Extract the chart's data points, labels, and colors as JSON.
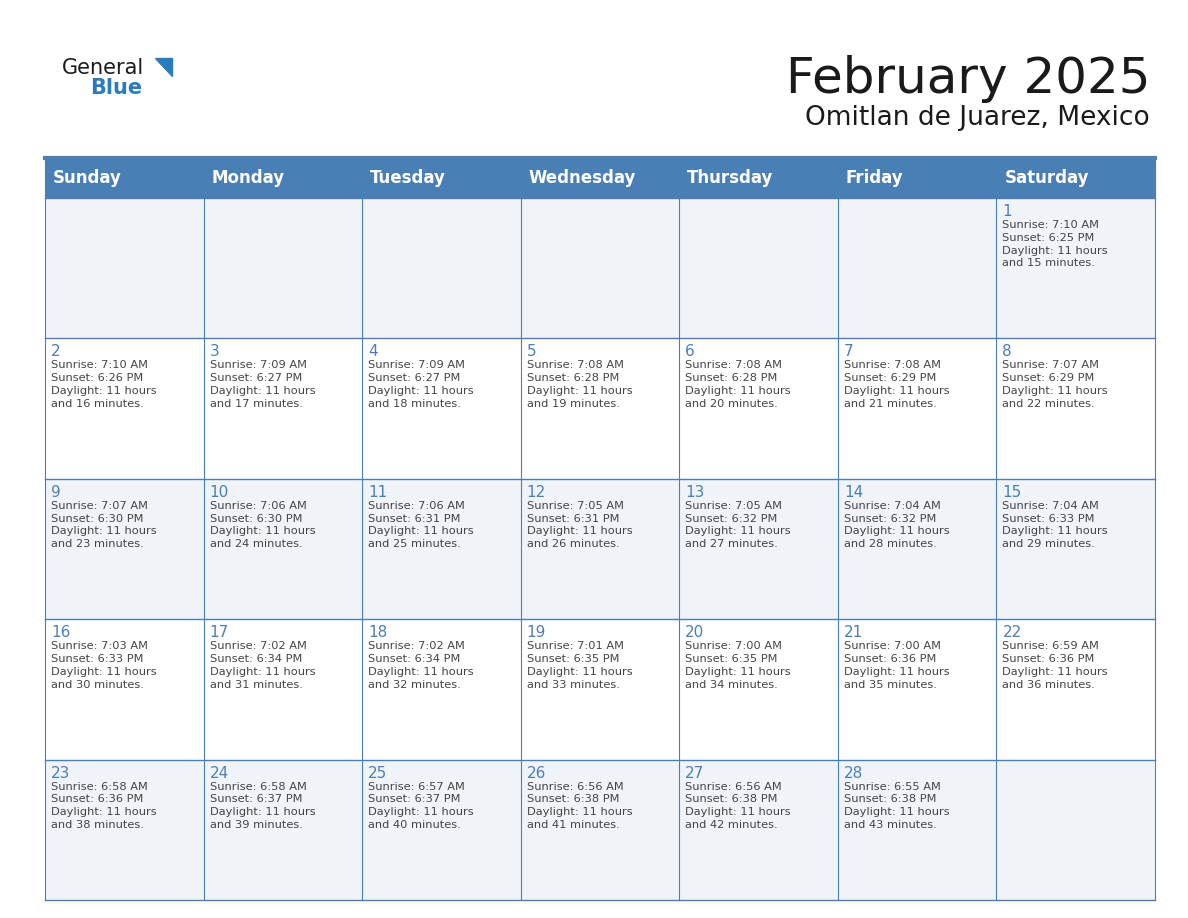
{
  "title": "February 2025",
  "subtitle": "Omitlan de Juarez, Mexico",
  "header_bg": "#4a7fb5",
  "header_text_color": "#ffffff",
  "cell_bg_light": "#f0f4f8",
  "cell_bg_white": "#ffffff",
  "day_number_color": "#4a7fb5",
  "info_text_color": "#444444",
  "border_color": "#4a7fb5",
  "sep_line_color": "#4a7fb5",
  "days_of_week": [
    "Sunday",
    "Monday",
    "Tuesday",
    "Wednesday",
    "Thursday",
    "Friday",
    "Saturday"
  ],
  "weeks": [
    [
      {
        "day": "",
        "info": ""
      },
      {
        "day": "",
        "info": ""
      },
      {
        "day": "",
        "info": ""
      },
      {
        "day": "",
        "info": ""
      },
      {
        "day": "",
        "info": ""
      },
      {
        "day": "",
        "info": ""
      },
      {
        "day": "1",
        "info": "Sunrise: 7:10 AM\nSunset: 6:25 PM\nDaylight: 11 hours\nand 15 minutes."
      }
    ],
    [
      {
        "day": "2",
        "info": "Sunrise: 7:10 AM\nSunset: 6:26 PM\nDaylight: 11 hours\nand 16 minutes."
      },
      {
        "day": "3",
        "info": "Sunrise: 7:09 AM\nSunset: 6:27 PM\nDaylight: 11 hours\nand 17 minutes."
      },
      {
        "day": "4",
        "info": "Sunrise: 7:09 AM\nSunset: 6:27 PM\nDaylight: 11 hours\nand 18 minutes."
      },
      {
        "day": "5",
        "info": "Sunrise: 7:08 AM\nSunset: 6:28 PM\nDaylight: 11 hours\nand 19 minutes."
      },
      {
        "day": "6",
        "info": "Sunrise: 7:08 AM\nSunset: 6:28 PM\nDaylight: 11 hours\nand 20 minutes."
      },
      {
        "day": "7",
        "info": "Sunrise: 7:08 AM\nSunset: 6:29 PM\nDaylight: 11 hours\nand 21 minutes."
      },
      {
        "day": "8",
        "info": "Sunrise: 7:07 AM\nSunset: 6:29 PM\nDaylight: 11 hours\nand 22 minutes."
      }
    ],
    [
      {
        "day": "9",
        "info": "Sunrise: 7:07 AM\nSunset: 6:30 PM\nDaylight: 11 hours\nand 23 minutes."
      },
      {
        "day": "10",
        "info": "Sunrise: 7:06 AM\nSunset: 6:30 PM\nDaylight: 11 hours\nand 24 minutes."
      },
      {
        "day": "11",
        "info": "Sunrise: 7:06 AM\nSunset: 6:31 PM\nDaylight: 11 hours\nand 25 minutes."
      },
      {
        "day": "12",
        "info": "Sunrise: 7:05 AM\nSunset: 6:31 PM\nDaylight: 11 hours\nand 26 minutes."
      },
      {
        "day": "13",
        "info": "Sunrise: 7:05 AM\nSunset: 6:32 PM\nDaylight: 11 hours\nand 27 minutes."
      },
      {
        "day": "14",
        "info": "Sunrise: 7:04 AM\nSunset: 6:32 PM\nDaylight: 11 hours\nand 28 minutes."
      },
      {
        "day": "15",
        "info": "Sunrise: 7:04 AM\nSunset: 6:33 PM\nDaylight: 11 hours\nand 29 minutes."
      }
    ],
    [
      {
        "day": "16",
        "info": "Sunrise: 7:03 AM\nSunset: 6:33 PM\nDaylight: 11 hours\nand 30 minutes."
      },
      {
        "day": "17",
        "info": "Sunrise: 7:02 AM\nSunset: 6:34 PM\nDaylight: 11 hours\nand 31 minutes."
      },
      {
        "day": "18",
        "info": "Sunrise: 7:02 AM\nSunset: 6:34 PM\nDaylight: 11 hours\nand 32 minutes."
      },
      {
        "day": "19",
        "info": "Sunrise: 7:01 AM\nSunset: 6:35 PM\nDaylight: 11 hours\nand 33 minutes."
      },
      {
        "day": "20",
        "info": "Sunrise: 7:00 AM\nSunset: 6:35 PM\nDaylight: 11 hours\nand 34 minutes."
      },
      {
        "day": "21",
        "info": "Sunrise: 7:00 AM\nSunset: 6:36 PM\nDaylight: 11 hours\nand 35 minutes."
      },
      {
        "day": "22",
        "info": "Sunrise: 6:59 AM\nSunset: 6:36 PM\nDaylight: 11 hours\nand 36 minutes."
      }
    ],
    [
      {
        "day": "23",
        "info": "Sunrise: 6:58 AM\nSunset: 6:36 PM\nDaylight: 11 hours\nand 38 minutes."
      },
      {
        "day": "24",
        "info": "Sunrise: 6:58 AM\nSunset: 6:37 PM\nDaylight: 11 hours\nand 39 minutes."
      },
      {
        "day": "25",
        "info": "Sunrise: 6:57 AM\nSunset: 6:37 PM\nDaylight: 11 hours\nand 40 minutes."
      },
      {
        "day": "26",
        "info": "Sunrise: 6:56 AM\nSunset: 6:38 PM\nDaylight: 11 hours\nand 41 minutes."
      },
      {
        "day": "27",
        "info": "Sunrise: 6:56 AM\nSunset: 6:38 PM\nDaylight: 11 hours\nand 42 minutes."
      },
      {
        "day": "28",
        "info": "Sunrise: 6:55 AM\nSunset: 6:38 PM\nDaylight: 11 hours\nand 43 minutes."
      },
      {
        "day": "",
        "info": ""
      }
    ]
  ],
  "logo_text_general": "General",
  "logo_text_blue": "Blue",
  "logo_color_general": "#1a1a1a",
  "logo_color_blue": "#2b7bbf",
  "logo_triangle_color": "#2b7bbf",
  "title_fontsize": 36,
  "subtitle_fontsize": 19,
  "header_fontsize": 12,
  "day_number_fontsize": 11,
  "info_fontsize": 8.2,
  "logo_fontsize_general": 15,
  "logo_fontsize_blue": 15
}
